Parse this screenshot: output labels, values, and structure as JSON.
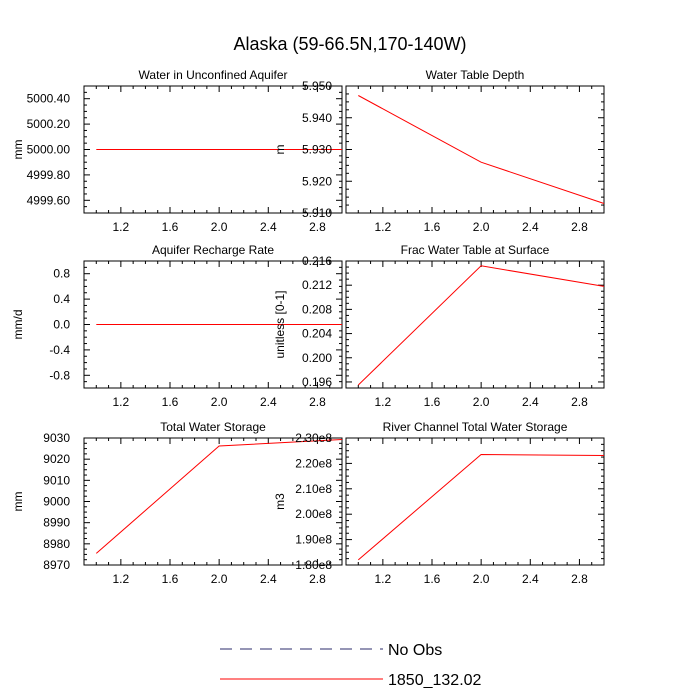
{
  "title": "Alaska (59-66.5N,170-140W)",
  "colors": {
    "model_line": "#ff0000",
    "obs_line": "#2b2b6b",
    "axis": "#000000"
  },
  "legend": {
    "placement": "bottom-center",
    "entries": [
      {
        "label": "No Obs",
        "style": "dashed",
        "color": "#2b2b6b"
      },
      {
        "label": "1850_132.02",
        "style": "solid",
        "color": "#ff0000"
      }
    ]
  },
  "chart_data": [
    {
      "type": "line",
      "title": "Water in Unconfined Aquifer",
      "ylabel": "mm",
      "xlim": [
        0.9,
        3.0
      ],
      "ylim": [
        4999.5,
        5000.5
      ],
      "xticks": [
        "1.2",
        "1.6",
        "2.0",
        "2.4",
        "2.8"
      ],
      "yticks": [
        "4999.60",
        "4999.80",
        "5000.00",
        "5000.20",
        "5000.40"
      ],
      "series": [
        {
          "name": "1850_132.02",
          "x": [
            1,
            2,
            3
          ],
          "values": [
            5000.0,
            5000.0,
            5000.0
          ]
        }
      ]
    },
    {
      "type": "line",
      "title": "Water Table Depth",
      "ylabel": "m",
      "xlim": [
        0.9,
        3.0
      ],
      "ylim": [
        5.91,
        5.95
      ],
      "xticks": [
        "1.2",
        "1.6",
        "2.0",
        "2.4",
        "2.8"
      ],
      "yticks": [
        "5.910",
        "5.920",
        "5.930",
        "5.940",
        "5.950"
      ],
      "series": [
        {
          "name": "1850_132.02",
          "x": [
            1,
            2,
            3
          ],
          "values": [
            5.947,
            5.926,
            5.913
          ]
        }
      ]
    },
    {
      "type": "line",
      "title": "Aquifer Recharge Rate",
      "ylabel": "mm/d",
      "xlim": [
        0.9,
        3.0
      ],
      "ylim": [
        -1.0,
        1.0
      ],
      "xticks": [
        "1.2",
        "1.6",
        "2.0",
        "2.4",
        "2.8"
      ],
      "yticks": [
        "-0.8",
        "-0.4",
        "0.0",
        "0.4",
        "0.8"
      ],
      "series": [
        {
          "name": "1850_132.02",
          "x": [
            1,
            2,
            3
          ],
          "values": [
            0.0,
            0.0,
            0.0
          ]
        }
      ]
    },
    {
      "type": "line",
      "title": "Frac Water Table at Surface",
      "ylabel": "unitless [0-1]",
      "xlim": [
        0.9,
        3.0
      ],
      "ylim": [
        0.195,
        0.216
      ],
      "xticks": [
        "1.2",
        "1.6",
        "2.0",
        "2.4",
        "2.8"
      ],
      "yticks": [
        "0.196",
        "0.200",
        "0.204",
        "0.208",
        "0.212",
        "0.216"
      ],
      "series": [
        {
          "name": "1850_132.02",
          "x": [
            1,
            2,
            3
          ],
          "values": [
            0.1955,
            0.2152,
            0.2118
          ]
        }
      ]
    },
    {
      "type": "line",
      "title": "Total Water Storage",
      "ylabel": "mm",
      "xlim": [
        0.9,
        3.0
      ],
      "ylim": [
        8970,
        9030
      ],
      "xticks": [
        "1.2",
        "1.6",
        "2.0",
        "2.4",
        "2.8"
      ],
      "yticks": [
        "8970",
        "8980",
        "8990",
        "9000",
        "9010",
        "9020",
        "9030"
      ],
      "series": [
        {
          "name": "1850_132.02",
          "x": [
            1,
            2,
            3
          ],
          "values": [
            8975.5,
            9026.2,
            9029.3
          ]
        }
      ]
    },
    {
      "type": "line",
      "title": "River Channel Total Water Storage",
      "ylabel": "m3",
      "xlim": [
        0.9,
        3.0
      ],
      "ylim": [
        180000000,
        230000000
      ],
      "xticks": [
        "1.2",
        "1.6",
        "2.0",
        "2.4",
        "2.8"
      ],
      "yticks": [
        "1.80e8",
        "1.90e8",
        "2.00e8",
        "2.10e8",
        "2.20e8",
        "2.30e8"
      ],
      "series": [
        {
          "name": "1850_132.02",
          "x": [
            1,
            2,
            3
          ],
          "values": [
            182000000,
            223500000,
            223100000
          ]
        }
      ]
    }
  ]
}
